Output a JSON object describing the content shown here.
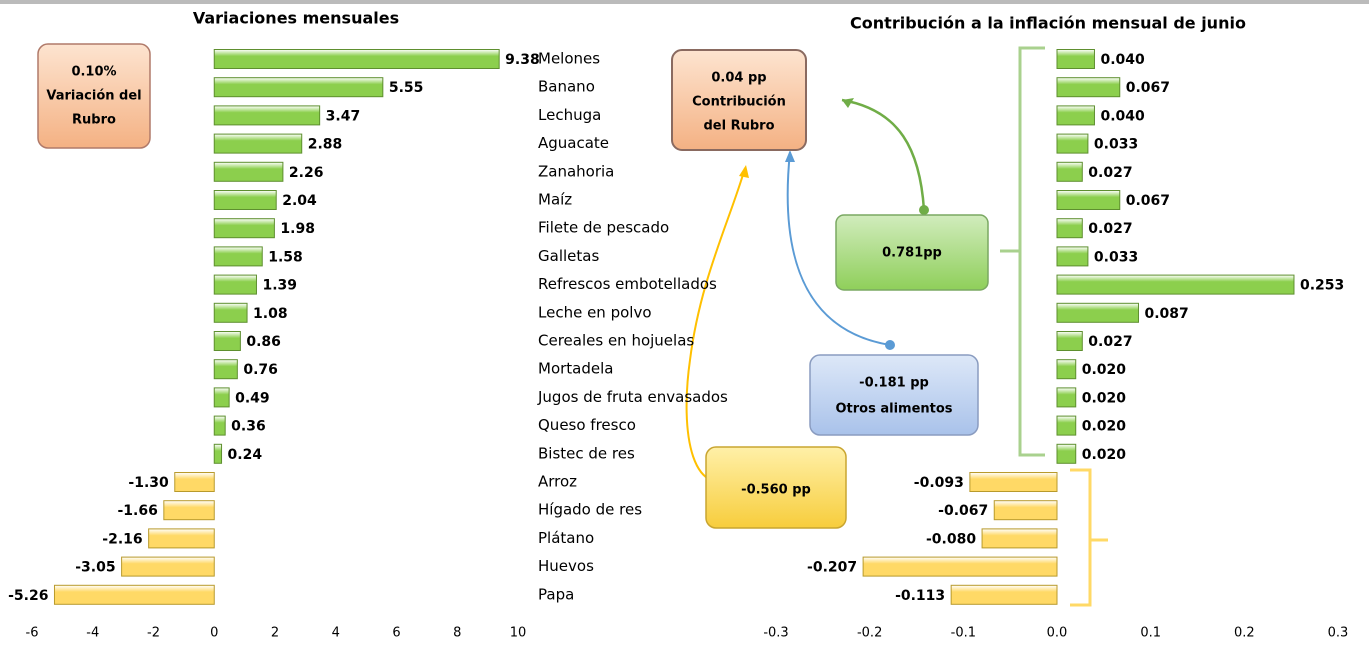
{
  "chart_data": [
    {
      "type": "bar",
      "orientation": "horizontal",
      "title": "Variaciones mensuales",
      "categories": [
        "Melones",
        "Banano",
        "Lechuga",
        "Aguacate",
        "Zanahoria",
        "Maíz",
        "Filete de pescado",
        "Galletas",
        "Refrescos embotellados",
        "Leche en polvo",
        "Cereales en hojuelas",
        "Mortadela",
        "Jugos de fruta envasados",
        "Queso fresco",
        "Bistec de res",
        "Arroz",
        "Hígado de res",
        "Plátano",
        "Huevos",
        "Papa"
      ],
      "values": [
        9.38,
        5.55,
        3.47,
        2.88,
        2.26,
        2.04,
        1.98,
        1.58,
        1.39,
        1.08,
        0.86,
        0.76,
        0.49,
        0.36,
        0.24,
        -1.3,
        -1.66,
        -2.16,
        -3.05,
        -5.26
      ],
      "value_labels": [
        "9.38",
        "5.55",
        "3.47",
        "2.88",
        "2.26",
        "2.04",
        "1.98",
        "1.58",
        "1.39",
        "1.08",
        "0.86",
        "0.76",
        "0.49",
        "0.36",
        "0.24",
        "-1.30",
        "-1.66",
        "-2.16",
        "-3.05",
        "-5.26"
      ],
      "colors": {
        "positive": "#8ccf4d",
        "negative": "#ffd966"
      },
      "xlim": [
        -6,
        10
      ],
      "xticks": [
        -6,
        -4,
        -2,
        0,
        2,
        4,
        6,
        8,
        10
      ],
      "annotations": [
        [
          "0.10%",
          "Variación del",
          "Rubro"
        ]
      ]
    },
    {
      "type": "bar",
      "orientation": "horizontal",
      "title": "Contribución a la inflación mensual de junio",
      "values": [
        0.04,
        0.067,
        0.04,
        0.033,
        0.027,
        0.067,
        0.027,
        0.033,
        0.253,
        0.087,
        0.027,
        0.02,
        0.02,
        0.02,
        0.02,
        -0.093,
        -0.067,
        -0.08,
        -0.207,
        -0.113
      ],
      "value_labels": [
        "0.040",
        "0.067",
        "0.040",
        "0.033",
        "0.027",
        "0.067",
        "0.027",
        "0.033",
        "0.253",
        "0.087",
        "0.027",
        "0.020",
        "0.020",
        "0.020",
        "0.020",
        "-0.093",
        "-0.067",
        "-0.080",
        "-0.207",
        "-0.113"
      ],
      "colors": {
        "positive": "#8ccf4d",
        "negative": "#ffd966"
      },
      "xlim": [
        -0.3,
        0.3
      ],
      "xticks": [
        -0.3,
        -0.2,
        -0.1,
        {
          "value": 0,
          "label": "0.0"
        },
        0.1,
        0.2,
        0.3
      ],
      "annotations": [
        [
          "0.04 pp",
          "Contribución",
          "del Rubro"
        ],
        [
          "0.781pp"
        ],
        [
          "-0.181 pp",
          "Otros alimentos"
        ],
        [
          "-0.560 pp"
        ]
      ]
    }
  ]
}
